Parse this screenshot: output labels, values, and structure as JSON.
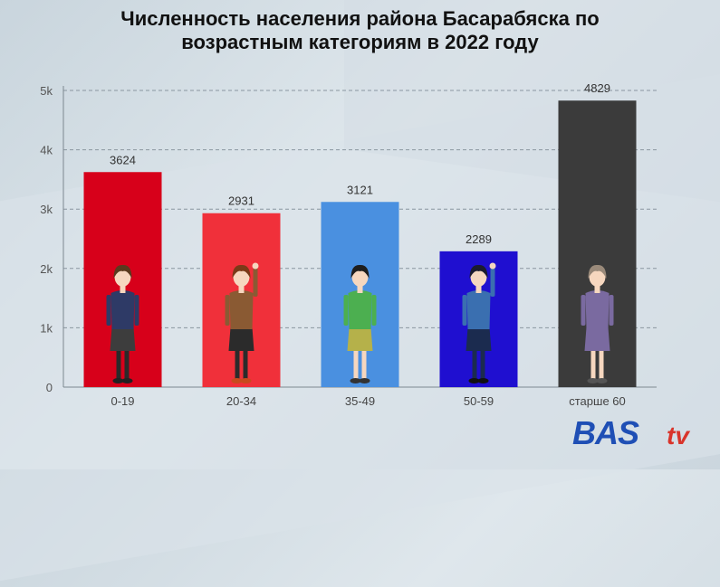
{
  "title_line1": "Численность населения района Басарабяска по",
  "title_line2": "возрастным категориям в 2022 году",
  "logo": {
    "main": "BAS",
    "suffix": "tv"
  },
  "chart_data": {
    "type": "bar",
    "categories": [
      "0-19",
      "20-34",
      "35-49",
      "50-59",
      "старше 60"
    ],
    "values": [
      3624,
      2931,
      3121,
      2289,
      4829
    ],
    "value_labels": [
      "3624",
      "2931",
      "3121",
      "2289",
      "4829"
    ],
    "colors": [
      "#d7001a",
      "#f0303a",
      "#4a90e0",
      "#1f0fd0",
      "#3b3b3b"
    ],
    "ylim": [
      0,
      5000
    ],
    "yticks": [
      0,
      1000,
      2000,
      3000,
      4000,
      5000
    ],
    "ytick_labels": [
      "0",
      "1k",
      "2k",
      "3k",
      "4k",
      "5k"
    ],
    "grid": true,
    "title": "Численность населения района Басарабяска по возрастным категориям в 2022 году",
    "xlabel": "",
    "ylabel": "",
    "figure_icons": [
      "girl-figure-icon",
      "young-man-figure-icon",
      "woman-figure-icon",
      "man-glasses-figure-icon",
      "elderly-woman-figure-icon"
    ]
  }
}
